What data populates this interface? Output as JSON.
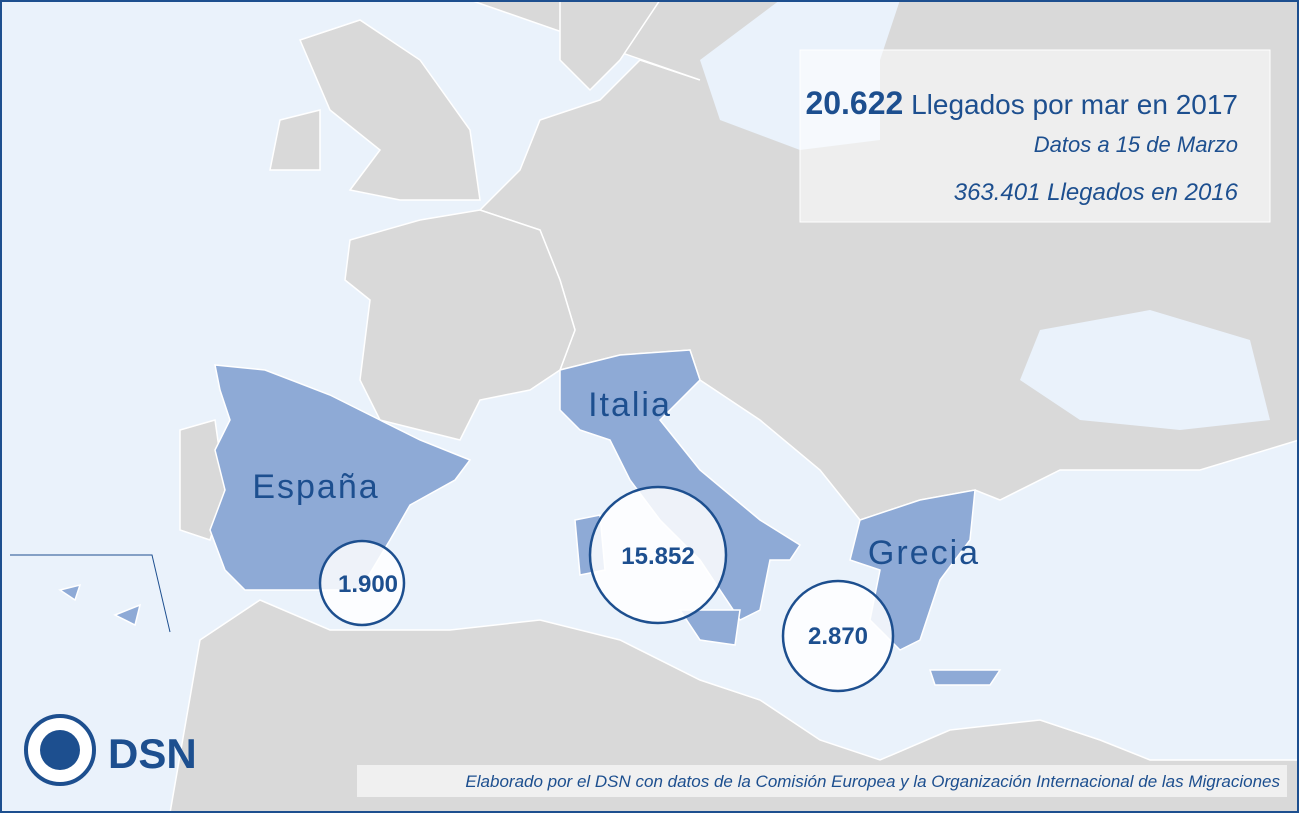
{
  "summary": {
    "arrivals_2017": "20.622",
    "arrivals_2017_label": "Llegados por mar en 2017",
    "date_note": "Datos a 15 de Marzo",
    "arrivals_2016": "363.401",
    "arrivals_2016_label": "Llegados en 2016"
  },
  "countries": [
    {
      "name": "España",
      "arrivals": "1.900"
    },
    {
      "name": "Italia",
      "arrivals": "15.852"
    },
    {
      "name": "Grecia",
      "arrivals": "2.870"
    }
  ],
  "logo": {
    "text": "DSN"
  },
  "footer": {
    "source": "Elaborado por el DSN con datos de la Comisión Europea y la Organización Internacional de las Migraciones"
  }
}
